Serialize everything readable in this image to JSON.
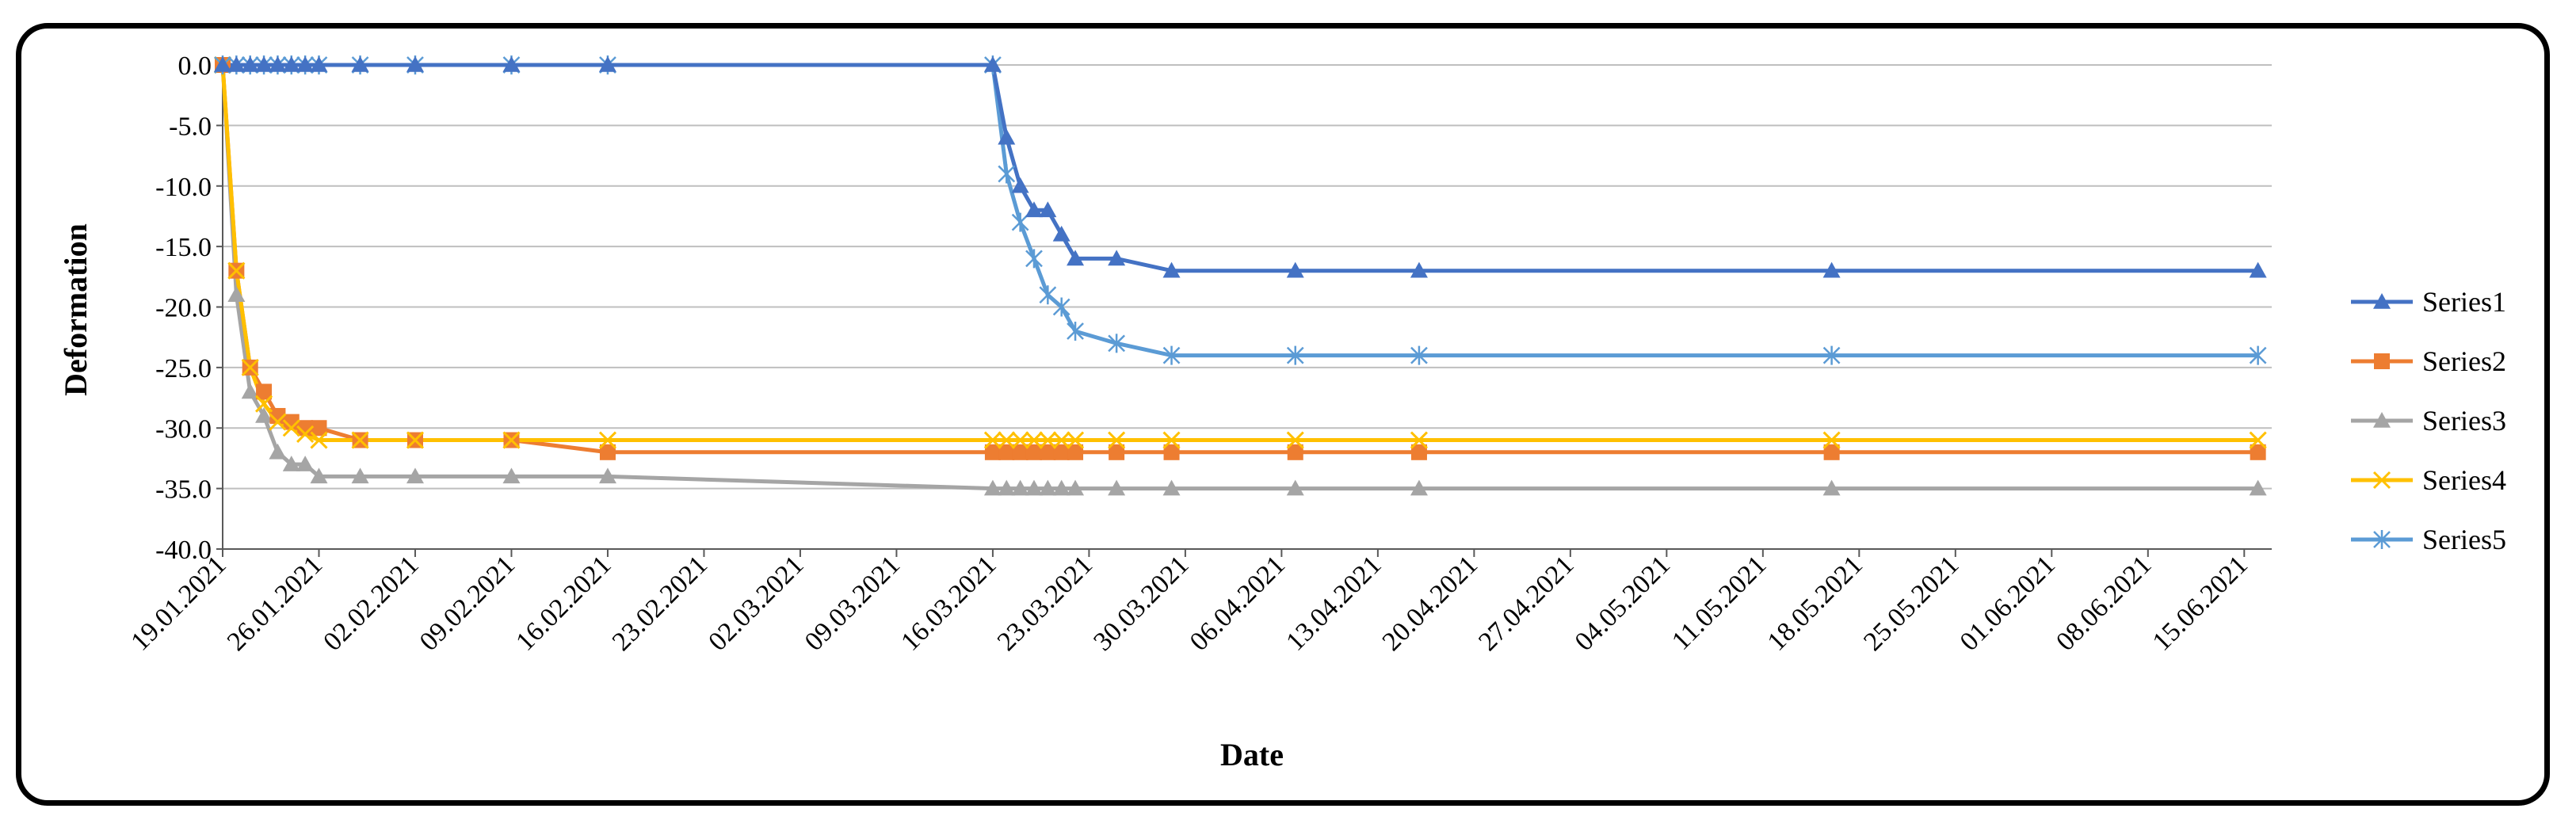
{
  "chart_data": {
    "type": "line",
    "title": "",
    "xlabel": "Date",
    "ylabel": "Deformation",
    "ylim": [
      -40,
      0
    ],
    "yticks": [
      0,
      -5,
      -10,
      -15,
      -20,
      -25,
      -30,
      -35,
      -40
    ],
    "ytick_labels": [
      "0.0",
      "-5.0",
      "-10.0",
      "-15.0",
      "-20.0",
      "-25.0",
      "-30.0",
      "-35.0",
      "-40.0"
    ],
    "xlim_days": [
      0,
      149
    ],
    "xticks": [
      {
        "day": 0,
        "label": "19.01.2021"
      },
      {
        "day": 7,
        "label": "26.01.2021"
      },
      {
        "day": 14,
        "label": "02.02.2021"
      },
      {
        "day": 21,
        "label": "09.02.2021"
      },
      {
        "day": 28,
        "label": "16.02.2021"
      },
      {
        "day": 35,
        "label": "23.02.2021"
      },
      {
        "day": 42,
        "label": "02.03.2021"
      },
      {
        "day": 49,
        "label": "09.03.2021"
      },
      {
        "day": 56,
        "label": "16.03.2021"
      },
      {
        "day": 63,
        "label": "23.03.2021"
      },
      {
        "day": 70,
        "label": "30.03.2021"
      },
      {
        "day": 77,
        "label": "06.04.2021"
      },
      {
        "day": 84,
        "label": "13.04.2021"
      },
      {
        "day": 91,
        "label": "20.04.2021"
      },
      {
        "day": 98,
        "label": "27.04.2021"
      },
      {
        "day": 105,
        "label": "04.05.2021"
      },
      {
        "day": 112,
        "label": "11.05.2021"
      },
      {
        "day": 119,
        "label": "18.05.2021"
      },
      {
        "day": 126,
        "label": "25.05.2021"
      },
      {
        "day": 133,
        "label": "01.06.2021"
      },
      {
        "day": 140,
        "label": "08.06.2021"
      },
      {
        "day": 147,
        "label": "15.06.2021"
      }
    ],
    "legend_position": "right",
    "grid": "horizontal",
    "series": [
      {
        "name": "Series1",
        "color": "#4472C4",
        "marker": "triangle",
        "x": [
          0,
          1,
          2,
          3,
          4,
          5,
          6,
          7,
          10,
          14,
          21,
          28,
          56,
          57,
          58,
          59,
          60,
          61,
          62,
          65,
          69,
          78,
          87,
          117,
          148
        ],
        "y": [
          0,
          0,
          0,
          0,
          0,
          0,
          0,
          0,
          0,
          0,
          0,
          0,
          0,
          -6,
          -10,
          -12,
          -12,
          -14,
          -16,
          -16,
          -17,
          -17,
          -17,
          -17,
          -17
        ]
      },
      {
        "name": "Series2",
        "color": "#ED7D31",
        "marker": "square",
        "x": [
          0,
          1,
          2,
          3,
          4,
          5,
          6,
          7,
          10,
          14,
          21,
          28,
          56,
          57,
          58,
          59,
          60,
          61,
          62,
          65,
          69,
          78,
          87,
          117,
          148
        ],
        "y": [
          0,
          -17,
          -25,
          -27,
          -29,
          -29.5,
          -30,
          -30,
          -31,
          -31,
          -31,
          -32,
          -32,
          -32,
          -32,
          -32,
          -32,
          -32,
          -32,
          -32,
          -32,
          -32,
          -32,
          -32,
          -32
        ]
      },
      {
        "name": "Series3",
        "color": "#A5A5A5",
        "marker": "triangle",
        "x": [
          0,
          1,
          2,
          3,
          4,
          5,
          6,
          7,
          10,
          14,
          21,
          28,
          56,
          57,
          58,
          59,
          60,
          61,
          62,
          65,
          69,
          78,
          87,
          117,
          148
        ],
        "y": [
          0,
          -19,
          -27,
          -29,
          -32,
          -33,
          -33,
          -34,
          -34,
          -34,
          -34,
          -34,
          -35,
          -35,
          -35,
          -35,
          -35,
          -35,
          -35,
          -35,
          -35,
          -35,
          -35,
          -35,
          -35
        ]
      },
      {
        "name": "Series4",
        "color": "#FFC000",
        "marker": "x",
        "x": [
          0,
          1,
          2,
          3,
          4,
          5,
          6,
          7,
          10,
          14,
          21,
          28,
          56,
          57,
          58,
          59,
          60,
          61,
          62,
          65,
          69,
          78,
          87,
          117,
          148
        ],
        "y": [
          0,
          -17,
          -25,
          -28,
          -29.5,
          -30,
          -30.5,
          -31,
          -31,
          -31,
          -31,
          -31,
          -31,
          -31,
          -31,
          -31,
          -31,
          -31,
          -31,
          -31,
          -31,
          -31,
          -31,
          -31,
          -31
        ]
      },
      {
        "name": "Series5",
        "color": "#5B9BD5",
        "marker": "star",
        "x": [
          0,
          1,
          2,
          3,
          4,
          5,
          6,
          7,
          10,
          14,
          21,
          28,
          56,
          57,
          58,
          59,
          60,
          61,
          62,
          65,
          69,
          78,
          87,
          117,
          148
        ],
        "y": [
          0,
          0,
          0,
          0,
          0,
          0,
          0,
          0,
          0,
          0,
          0,
          0,
          0,
          -9,
          -13,
          -16,
          -19,
          -20,
          -22,
          -23,
          -24,
          -24,
          -24,
          -24,
          -24
        ]
      }
    ]
  }
}
